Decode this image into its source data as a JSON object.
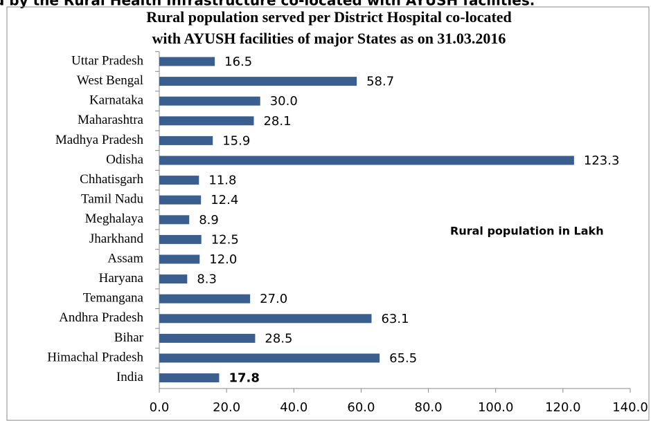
{
  "header": {
    "caption": "d by the Rural Health Infrastructure co-located with AYUSH facilities."
  },
  "chart_data": {
    "type": "barh",
    "title": [
      "Rural population served per District Hospital co-located",
      "with AYUSH facilities of major States as on 31.03.2016"
    ],
    "annotation": "Rural population in Lakh",
    "categories": [
      "Uttar Pradesh",
      "West Bengal",
      "Karnataka",
      "Maharashtra",
      "Madhya Pradesh",
      "Odisha",
      "Chhatisgarh",
      "Tamil Nadu",
      "Meghalaya",
      "Jharkhand",
      "Assam",
      "Haryana",
      "Temangana",
      "Andhra Pradesh",
      "Bihar",
      "Himachal Pradesh",
      "India"
    ],
    "values": [
      16.5,
      58.7,
      30.0,
      28.1,
      15.9,
      123.3,
      11.8,
      12.4,
      8.9,
      12.5,
      12.0,
      8.3,
      27.0,
      63.1,
      28.5,
      65.5,
      17.8
    ],
    "value_labels": [
      "16.5",
      "58.7",
      "30.0",
      "28.1",
      "15.9",
      "123.3",
      "11.8",
      "12.4",
      "8.9",
      "12.5",
      "12.0",
      "8.3",
      "27.0",
      "63.1",
      "28.5",
      "65.5",
      "17.8"
    ],
    "color": "#3a5f8f",
    "xlim": [
      0,
      140
    ],
    "xticks": [
      {
        "value": 0,
        "label": "0.0"
      },
      {
        "value": 20,
        "label": "20.0"
      },
      {
        "value": 40,
        "label": "40.0"
      },
      {
        "value": 60,
        "label": "60.0"
      },
      {
        "value": 80,
        "label": "80.0"
      },
      {
        "value": 100,
        "label": "100.0"
      },
      {
        "value": 120,
        "label": "120.0"
      },
      {
        "value": 140,
        "label": "140.0"
      }
    ]
  }
}
